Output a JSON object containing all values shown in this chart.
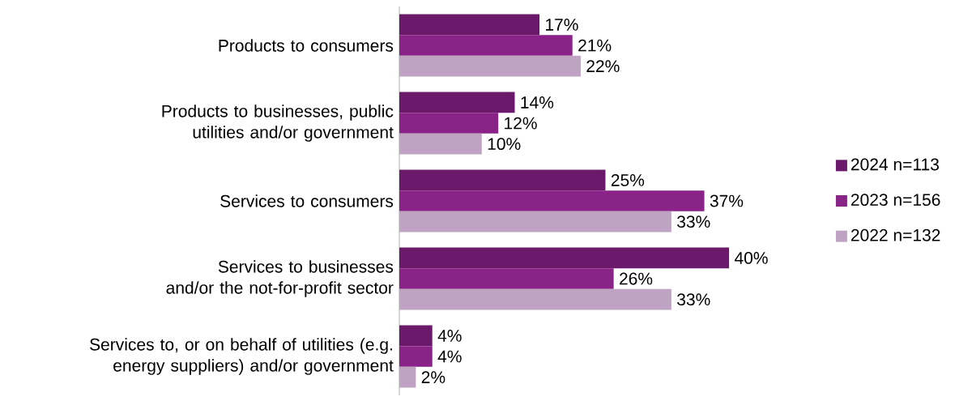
{
  "chart_data": {
    "type": "bar",
    "orientation": "horizontal",
    "legend": "right",
    "categories": [
      "Products to consumers",
      "Products to businesses, public utilities and/or government",
      "Services to consumers",
      "Services to businesses and/or the not-for-profit sector",
      "Services to, or on behalf of utilities (e.g. energy suppliers) and/or government"
    ],
    "series": [
      {
        "name": "2024 n=113",
        "color": "#6b1a6b",
        "values": [
          17,
          14,
          25,
          40,
          4
        ],
        "value_labels": [
          "17%",
          "14%",
          "25%",
          "40%",
          "4%"
        ]
      },
      {
        "name": "2023 n=156",
        "color": "#8a2388",
        "values": [
          21,
          12,
          37,
          26,
          4
        ],
        "value_labels": [
          "21%",
          "12%",
          "37%",
          "26%",
          "4%"
        ]
      },
      {
        "name": "2022 n=132",
        "color": "#bfa3c3",
        "values": [
          22,
          10,
          33,
          33,
          2
        ],
        "value_labels": [
          "22%",
          "10%",
          "33%",
          "33%",
          "2%"
        ]
      }
    ]
  }
}
